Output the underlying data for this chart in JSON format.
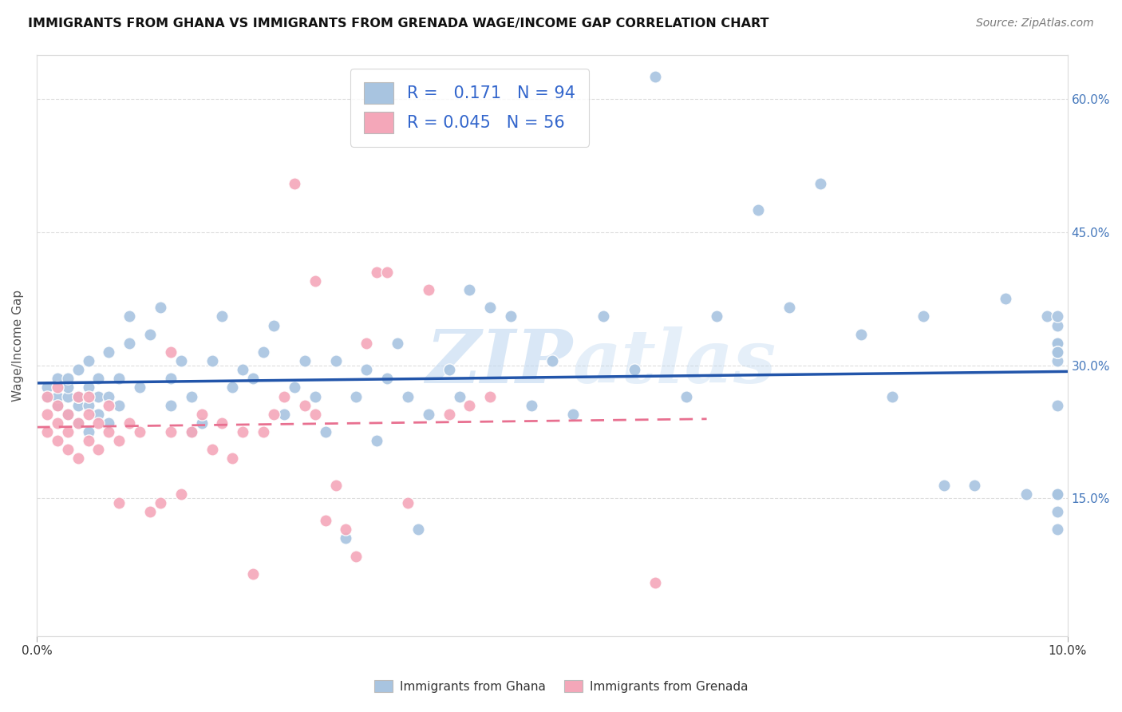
{
  "title": "IMMIGRANTS FROM GHANA VS IMMIGRANTS FROM GRENADA WAGE/INCOME GAP CORRELATION CHART",
  "source": "Source: ZipAtlas.com",
  "ylabel": "Wage/Income Gap",
  "xlim": [
    0.0,
    0.1
  ],
  "ylim": [
    -0.005,
    0.65
  ],
  "x_ticks": [
    0.0,
    0.1
  ],
  "x_tick_labels": [
    "0.0%",
    "10.0%"
  ],
  "y_ticks": [
    0.15,
    0.3,
    0.45,
    0.6
  ],
  "y_tick_labels": [
    "15.0%",
    "30.0%",
    "45.0%",
    "60.0%"
  ],
  "ghana_color": "#a8c4e0",
  "grenada_color": "#f4a7b9",
  "ghana_line_color": "#2255aa",
  "grenada_line_color": "#e87090",
  "ghana_R": 0.171,
  "ghana_N": 94,
  "grenada_R": 0.045,
  "grenada_N": 56,
  "ghana_scatter_x": [
    0.001,
    0.001,
    0.002,
    0.002,
    0.002,
    0.003,
    0.003,
    0.003,
    0.003,
    0.004,
    0.004,
    0.004,
    0.004,
    0.005,
    0.005,
    0.005,
    0.005,
    0.006,
    0.006,
    0.006,
    0.007,
    0.007,
    0.007,
    0.008,
    0.008,
    0.009,
    0.009,
    0.01,
    0.011,
    0.012,
    0.013,
    0.013,
    0.014,
    0.015,
    0.015,
    0.016,
    0.017,
    0.018,
    0.019,
    0.02,
    0.021,
    0.022,
    0.023,
    0.024,
    0.025,
    0.026,
    0.027,
    0.028,
    0.029,
    0.03,
    0.031,
    0.032,
    0.033,
    0.034,
    0.035,
    0.036,
    0.037,
    0.038,
    0.04,
    0.041,
    0.042,
    0.044,
    0.046,
    0.048,
    0.05,
    0.052,
    0.055,
    0.058,
    0.06,
    0.063,
    0.066,
    0.07,
    0.073,
    0.076,
    0.08,
    0.083,
    0.086,
    0.088,
    0.091,
    0.094,
    0.096,
    0.098,
    0.099,
    0.099,
    0.099,
    0.099,
    0.099,
    0.099,
    0.099,
    0.099,
    0.099,
    0.099,
    0.099,
    0.099
  ],
  "ghana_scatter_y": [
    0.265,
    0.275,
    0.255,
    0.265,
    0.285,
    0.245,
    0.265,
    0.275,
    0.285,
    0.235,
    0.255,
    0.265,
    0.295,
    0.225,
    0.255,
    0.275,
    0.305,
    0.245,
    0.265,
    0.285,
    0.235,
    0.265,
    0.315,
    0.255,
    0.285,
    0.325,
    0.355,
    0.275,
    0.335,
    0.365,
    0.255,
    0.285,
    0.305,
    0.225,
    0.265,
    0.235,
    0.305,
    0.355,
    0.275,
    0.295,
    0.285,
    0.315,
    0.345,
    0.245,
    0.275,
    0.305,
    0.265,
    0.225,
    0.305,
    0.105,
    0.265,
    0.295,
    0.215,
    0.285,
    0.325,
    0.265,
    0.115,
    0.245,
    0.295,
    0.265,
    0.385,
    0.365,
    0.355,
    0.255,
    0.305,
    0.245,
    0.355,
    0.295,
    0.625,
    0.265,
    0.355,
    0.475,
    0.365,
    0.505,
    0.335,
    0.265,
    0.355,
    0.165,
    0.165,
    0.375,
    0.155,
    0.355,
    0.155,
    0.325,
    0.345,
    0.255,
    0.305,
    0.135,
    0.355,
    0.155,
    0.115,
    0.325,
    0.315,
    0.315
  ],
  "grenada_scatter_x": [
    0.001,
    0.001,
    0.001,
    0.002,
    0.002,
    0.002,
    0.002,
    0.003,
    0.003,
    0.003,
    0.004,
    0.004,
    0.004,
    0.005,
    0.005,
    0.005,
    0.006,
    0.006,
    0.007,
    0.007,
    0.008,
    0.008,
    0.009,
    0.01,
    0.011,
    0.012,
    0.013,
    0.013,
    0.014,
    0.015,
    0.016,
    0.017,
    0.018,
    0.019,
    0.02,
    0.021,
    0.022,
    0.023,
    0.024,
    0.025,
    0.026,
    0.027,
    0.027,
    0.028,
    0.029,
    0.03,
    0.031,
    0.032,
    0.033,
    0.034,
    0.036,
    0.038,
    0.04,
    0.042,
    0.044,
    0.06
  ],
  "grenada_scatter_y": [
    0.225,
    0.245,
    0.265,
    0.215,
    0.235,
    0.255,
    0.275,
    0.205,
    0.225,
    0.245,
    0.195,
    0.235,
    0.265,
    0.215,
    0.245,
    0.265,
    0.205,
    0.235,
    0.225,
    0.255,
    0.215,
    0.145,
    0.235,
    0.225,
    0.135,
    0.145,
    0.225,
    0.315,
    0.155,
    0.225,
    0.245,
    0.205,
    0.235,
    0.195,
    0.225,
    0.065,
    0.225,
    0.245,
    0.265,
    0.505,
    0.255,
    0.245,
    0.395,
    0.125,
    0.165,
    0.115,
    0.085,
    0.325,
    0.405,
    0.405,
    0.145,
    0.385,
    0.245,
    0.255,
    0.265,
    0.055
  ],
  "background_color": "#ffffff",
  "grid_color": "#dddddd",
  "watermark_zip": "ZIP",
  "watermark_atlas": "atlas",
  "legend_ghana_label": "Immigrants from Ghana",
  "legend_grenada_label": "Immigrants from Grenada"
}
